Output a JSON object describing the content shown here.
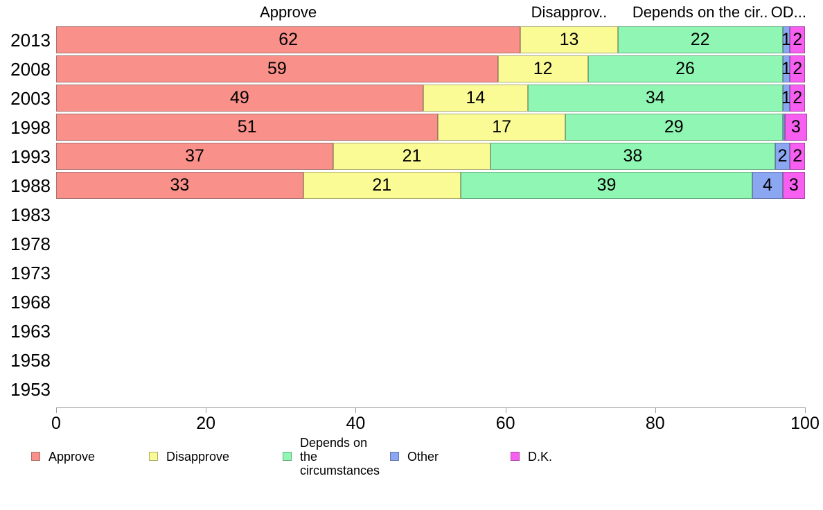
{
  "chart_data": {
    "type": "bar",
    "orientation": "horizontal",
    "stacked": true,
    "title": "",
    "xlabel": "",
    "ylabel": "",
    "xlim": [
      0,
      100
    ],
    "xticks": [
      0,
      20,
      40,
      60,
      80,
      100
    ],
    "grid": false,
    "legend_position": "bottom",
    "categories": [
      "2013",
      "2008",
      "2003",
      "1998",
      "1993",
      "1988",
      "1983",
      "1978",
      "1973",
      "1968",
      "1963",
      "1958",
      "1953"
    ],
    "series": [
      {
        "name": "Approve",
        "color": "#F9908A",
        "border_color": "#A8716D",
        "values": [
          62,
          59,
          49,
          51,
          37,
          33,
          null,
          null,
          null,
          null,
          null,
          null,
          null
        ]
      },
      {
        "name": "Disapprove",
        "color": "#FBFB96",
        "border_color": "#ABAB6B",
        "values": [
          13,
          12,
          14,
          17,
          21,
          21,
          null,
          null,
          null,
          null,
          null,
          null,
          null
        ]
      },
      {
        "name": "Depends on the circumstances",
        "color": "#90F6B3",
        "border_color": "#63AC7D",
        "values": [
          22,
          26,
          34,
          29,
          38,
          39,
          null,
          null,
          null,
          null,
          null,
          null,
          null
        ]
      },
      {
        "name": "Other",
        "color": "#8CA7F2",
        "border_color": "#6377AC",
        "values": [
          1,
          1,
          1,
          0,
          2,
          4,
          null,
          null,
          null,
          null,
          null,
          null,
          null
        ]
      },
      {
        "name": "D.K.",
        "color": "#F65FF0",
        "border_color": "#AC43A8",
        "values": [
          2,
          2,
          2,
          3,
          2,
          3,
          null,
          null,
          null,
          null,
          null,
          null,
          null
        ]
      }
    ],
    "column_headers": [
      {
        "label": "Approve",
        "center_units": 31
      },
      {
        "label": "Disapprov..",
        "center_units": 68.5
      },
      {
        "label": "Depends on the cir..",
        "center_units": 86
      },
      {
        "label": "O..",
        "center_units": 96.8
      },
      {
        "label": "D...",
        "center_units": 98.6
      }
    ]
  },
  "legend": {
    "items": [
      {
        "label": "Approve",
        "color": "#F9908A",
        "border_color": "#AB6F6B"
      },
      {
        "label": "Disapprove",
        "color": "#FBFB96",
        "border_color": "#ABAB6B"
      },
      {
        "label": "Depends on the\ncircumstances",
        "color": "#90F6B3",
        "border_color": "#63AC7D"
      },
      {
        "label": "Other",
        "color": "#8CA7F2",
        "border_color": "#6377AC"
      },
      {
        "label": "D.K.",
        "color": "#F65FF0",
        "border_color": "#AC43A8"
      }
    ]
  }
}
